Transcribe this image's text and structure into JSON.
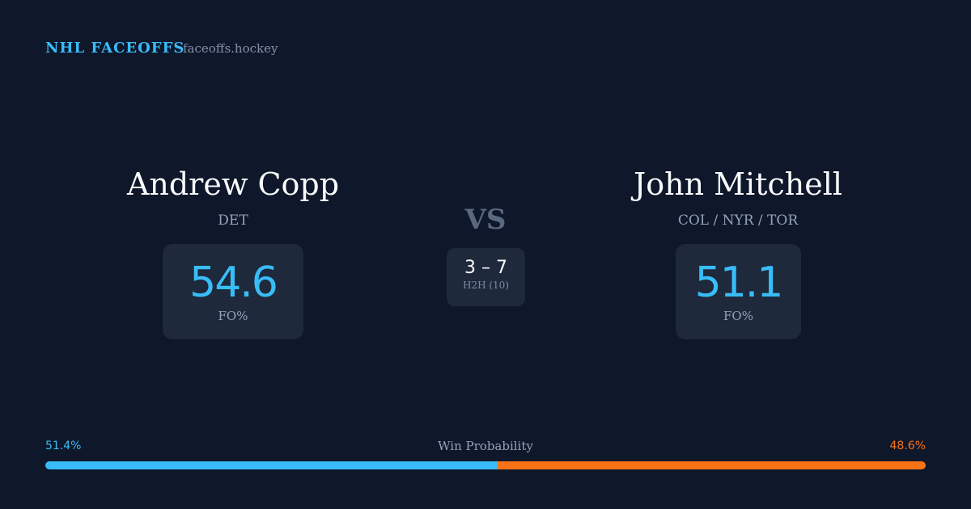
{
  "header": {
    "brand": "NHL FACEOFFS",
    "site": "faceoffs.hockey"
  },
  "players": [
    {
      "name": "Andrew Copp",
      "team": "DET",
      "fo_pct": 54.6,
      "fo_label": "FO%"
    },
    {
      "name": "John Mitchell",
      "team": "COL / NYR / TOR",
      "fo_pct": 51.1,
      "fo_label": "FO%"
    }
  ],
  "vs": "VS",
  "h2h": {
    "score": "3 – 7",
    "label": "H2H (10)"
  },
  "win_probability": {
    "label": "Win Probability",
    "left": {
      "value": 51.4,
      "label": "51.4%"
    },
    "right": {
      "value": 48.6,
      "label": "48.6%"
    }
  }
}
